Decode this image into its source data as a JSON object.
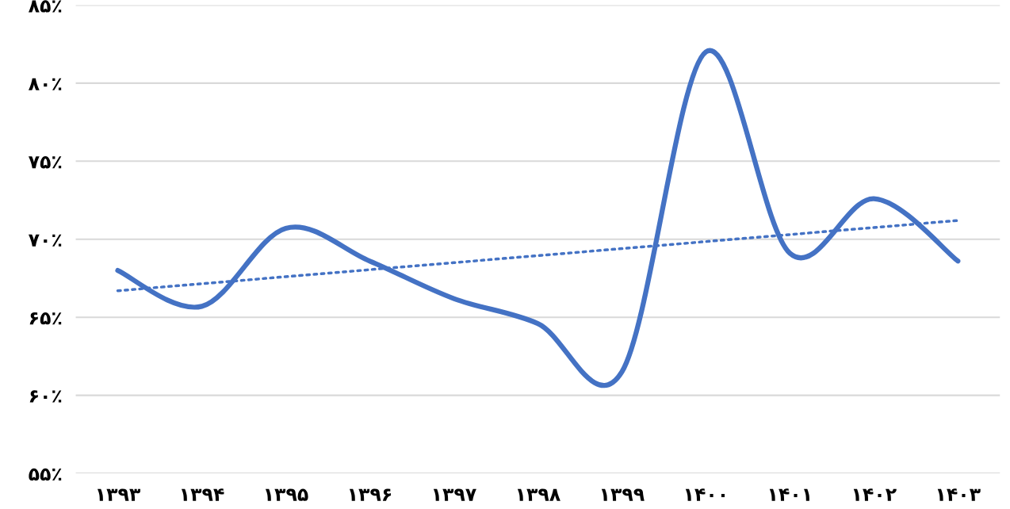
{
  "chart_data": {
    "type": "line",
    "categories": [
      "۱۳۹۳",
      "۱۳۹۴",
      "۱۳۹۵",
      "۱۳۹۶",
      "۱۳۹۷",
      "۱۳۹۸",
      "۱۳۹۹",
      "۱۴۰۰",
      "۱۴۰۱",
      "۱۴۰۲",
      "۱۴۰۳"
    ],
    "series": [
      {
        "color": "#4472c4",
        "values": [
          68.0,
          65.7,
          70.7,
          68.6,
          66.2,
          64.6,
          61.5,
          82.0,
          69.1,
          72.6,
          68.6
        ],
        "line_style": "solid"
      },
      {
        "color": "#4472c4",
        "values": [
          66.7,
          67.15,
          67.6,
          68.05,
          68.5,
          68.95,
          69.4,
          69.85,
          70.3,
          70.75,
          71.2
        ],
        "line_style": "dotted"
      }
    ],
    "ylim": [
      55,
      85
    ],
    "yticks": [
      {
        "value": 55,
        "label": "۵۵٪"
      },
      {
        "value": 60,
        "label": "۶۰٪"
      },
      {
        "value": 65,
        "label": "۶۵٪"
      },
      {
        "value": 70,
        "label": "۷۰٪"
      },
      {
        "value": 75,
        "label": "۷۵٪"
      },
      {
        "value": 80,
        "label": "۸۰٪"
      },
      {
        "value": 85,
        "label": "۸۵٪"
      }
    ],
    "grid": "y",
    "legend": false
  }
}
